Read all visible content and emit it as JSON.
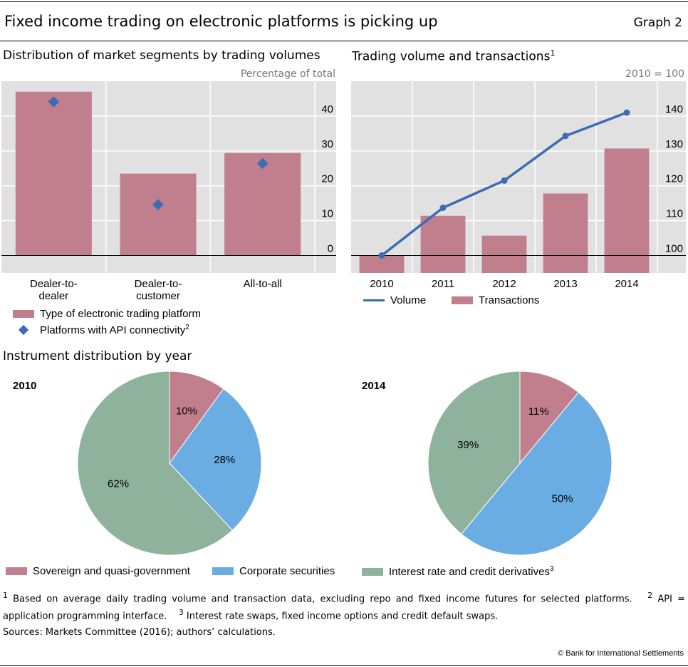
{
  "title": "Fixed income trading on electronic platforms is picking up",
  "graph_label": "Graph 2",
  "colors": {
    "pink": "#c17e8d",
    "blue": "#3a6db3",
    "light_blue": "#6aade2",
    "green": "#8eb29b",
    "plot_bg": "#e1e1e1"
  },
  "chart_data": [
    {
      "type": "bar",
      "title": "Distribution of market segments by trading volumes",
      "unit_label": "Percentage of total",
      "categories": [
        "Dealer-to-dealer",
        "Dealer-to-customer",
        "All-to-all"
      ],
      "category_lines": [
        [
          "Dealer-to-",
          "dealer"
        ],
        [
          "Dealer-to-",
          "customer"
        ],
        [
          "All-to-all"
        ]
      ],
      "series": [
        {
          "name": "Type of electronic trading platform",
          "kind": "bar",
          "values": [
            47.0,
            23.5,
            29.4
          ]
        },
        {
          "name": "Platforms with API connectivity",
          "name_sup": "2",
          "kind": "marker",
          "values": [
            44.1,
            14.6,
            26.4
          ]
        }
      ],
      "ylim": [
        -5,
        50
      ],
      "yticks": [
        0,
        10,
        20,
        30,
        40
      ],
      "grid": true
    },
    {
      "type": "bar+line",
      "title": "Trading volume and transactions",
      "title_sup": "1",
      "unit_label": "2010 = 100",
      "categories": [
        "2010",
        "2011",
        "2012",
        "2013",
        "2014"
      ],
      "series": [
        {
          "name": "Volume",
          "kind": "line",
          "values": [
            100,
            113.7,
            121.5,
            134.3,
            141.0
          ]
        },
        {
          "name": "Transactions",
          "kind": "bar",
          "values": [
            100,
            111.4,
            105.7,
            117.8,
            130.7
          ]
        }
      ],
      "ylim": [
        95,
        150
      ],
      "yticks": [
        100,
        110,
        120,
        130,
        140
      ],
      "grid": true
    },
    {
      "type": "pie",
      "section_title": "Instrument distribution by year",
      "title": "2010",
      "slices": [
        {
          "name": "Sovereign and quasi-government",
          "value": 10,
          "label": "10%"
        },
        {
          "name": "Corporate securities",
          "value": 28,
          "label": "28%"
        },
        {
          "name": "Interest rate and credit derivatives",
          "value": 62,
          "label": "62%"
        }
      ]
    },
    {
      "type": "pie",
      "title": "2014",
      "slices": [
        {
          "name": "Sovereign and quasi-government",
          "value": 11,
          "label": "11%"
        },
        {
          "name": "Corporate securities",
          "value": 50,
          "label": "50%"
        },
        {
          "name": "Interest rate and credit derivatives",
          "value": 39,
          "label": "39%"
        }
      ]
    }
  ],
  "pie_legend": {
    "items": [
      "Sovereign and quasi-government",
      "Corporate securities",
      "Interest rate and credit derivatives"
    ],
    "last_sup": "3"
  },
  "footnotes": {
    "n1_sup": "1",
    "n1": "Based on average daily trading volume and transaction data, excluding repo and fixed income futures for selected platforms.",
    "n2_sup": "2",
    "n2": "API = application programming interface.",
    "n3_sup": "3",
    "n3": "Interest rate swaps, fixed income options and credit default swaps."
  },
  "sources": "Sources: Markets Committee (2016); authors’ calculations.",
  "copyright": "© Bank for International Settlements"
}
